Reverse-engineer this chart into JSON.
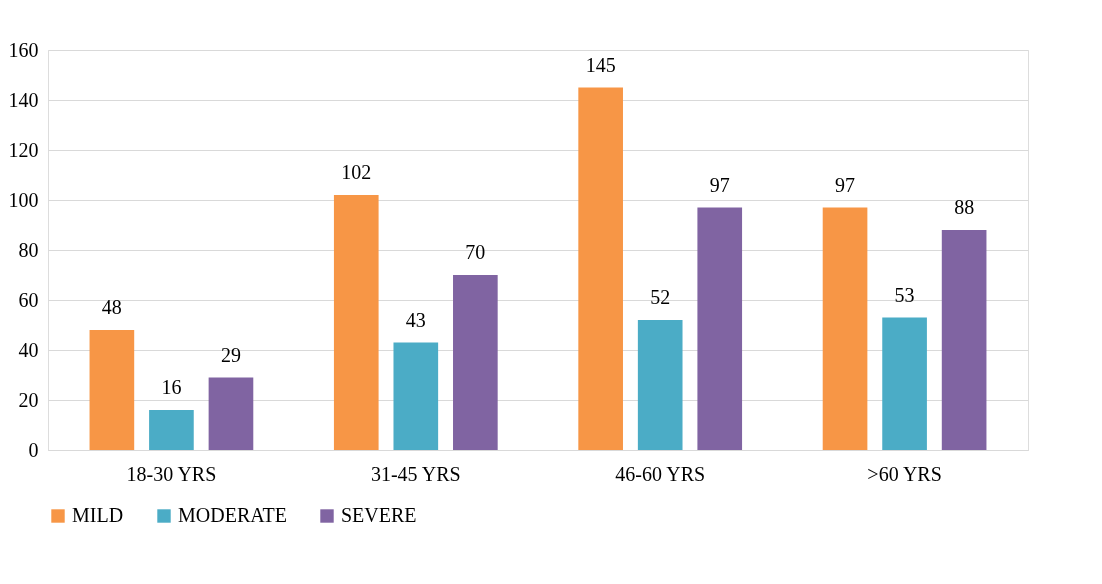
{
  "chart_data": {
    "type": "bar",
    "categories": [
      "18-30 YRS",
      "31-45 YRS",
      "46-60 YRS",
      ">60 YRS"
    ],
    "series": [
      {
        "name": "MILD",
        "color": "#f79646",
        "values": [
          48,
          102,
          145,
          97
        ]
      },
      {
        "name": "MODERATE",
        "color": "#4bacc6",
        "values": [
          16,
          43,
          52,
          53
        ]
      },
      {
        "name": "SEVERE",
        "color": "#8064a2",
        "values": [
          29,
          70,
          97,
          88
        ]
      }
    ],
    "ylim": [
      0,
      160
    ],
    "yticks": [
      0,
      20,
      40,
      60,
      80,
      100,
      120,
      140,
      160
    ],
    "grid": "y",
    "legend": "bottom",
    "data_labels": true
  }
}
